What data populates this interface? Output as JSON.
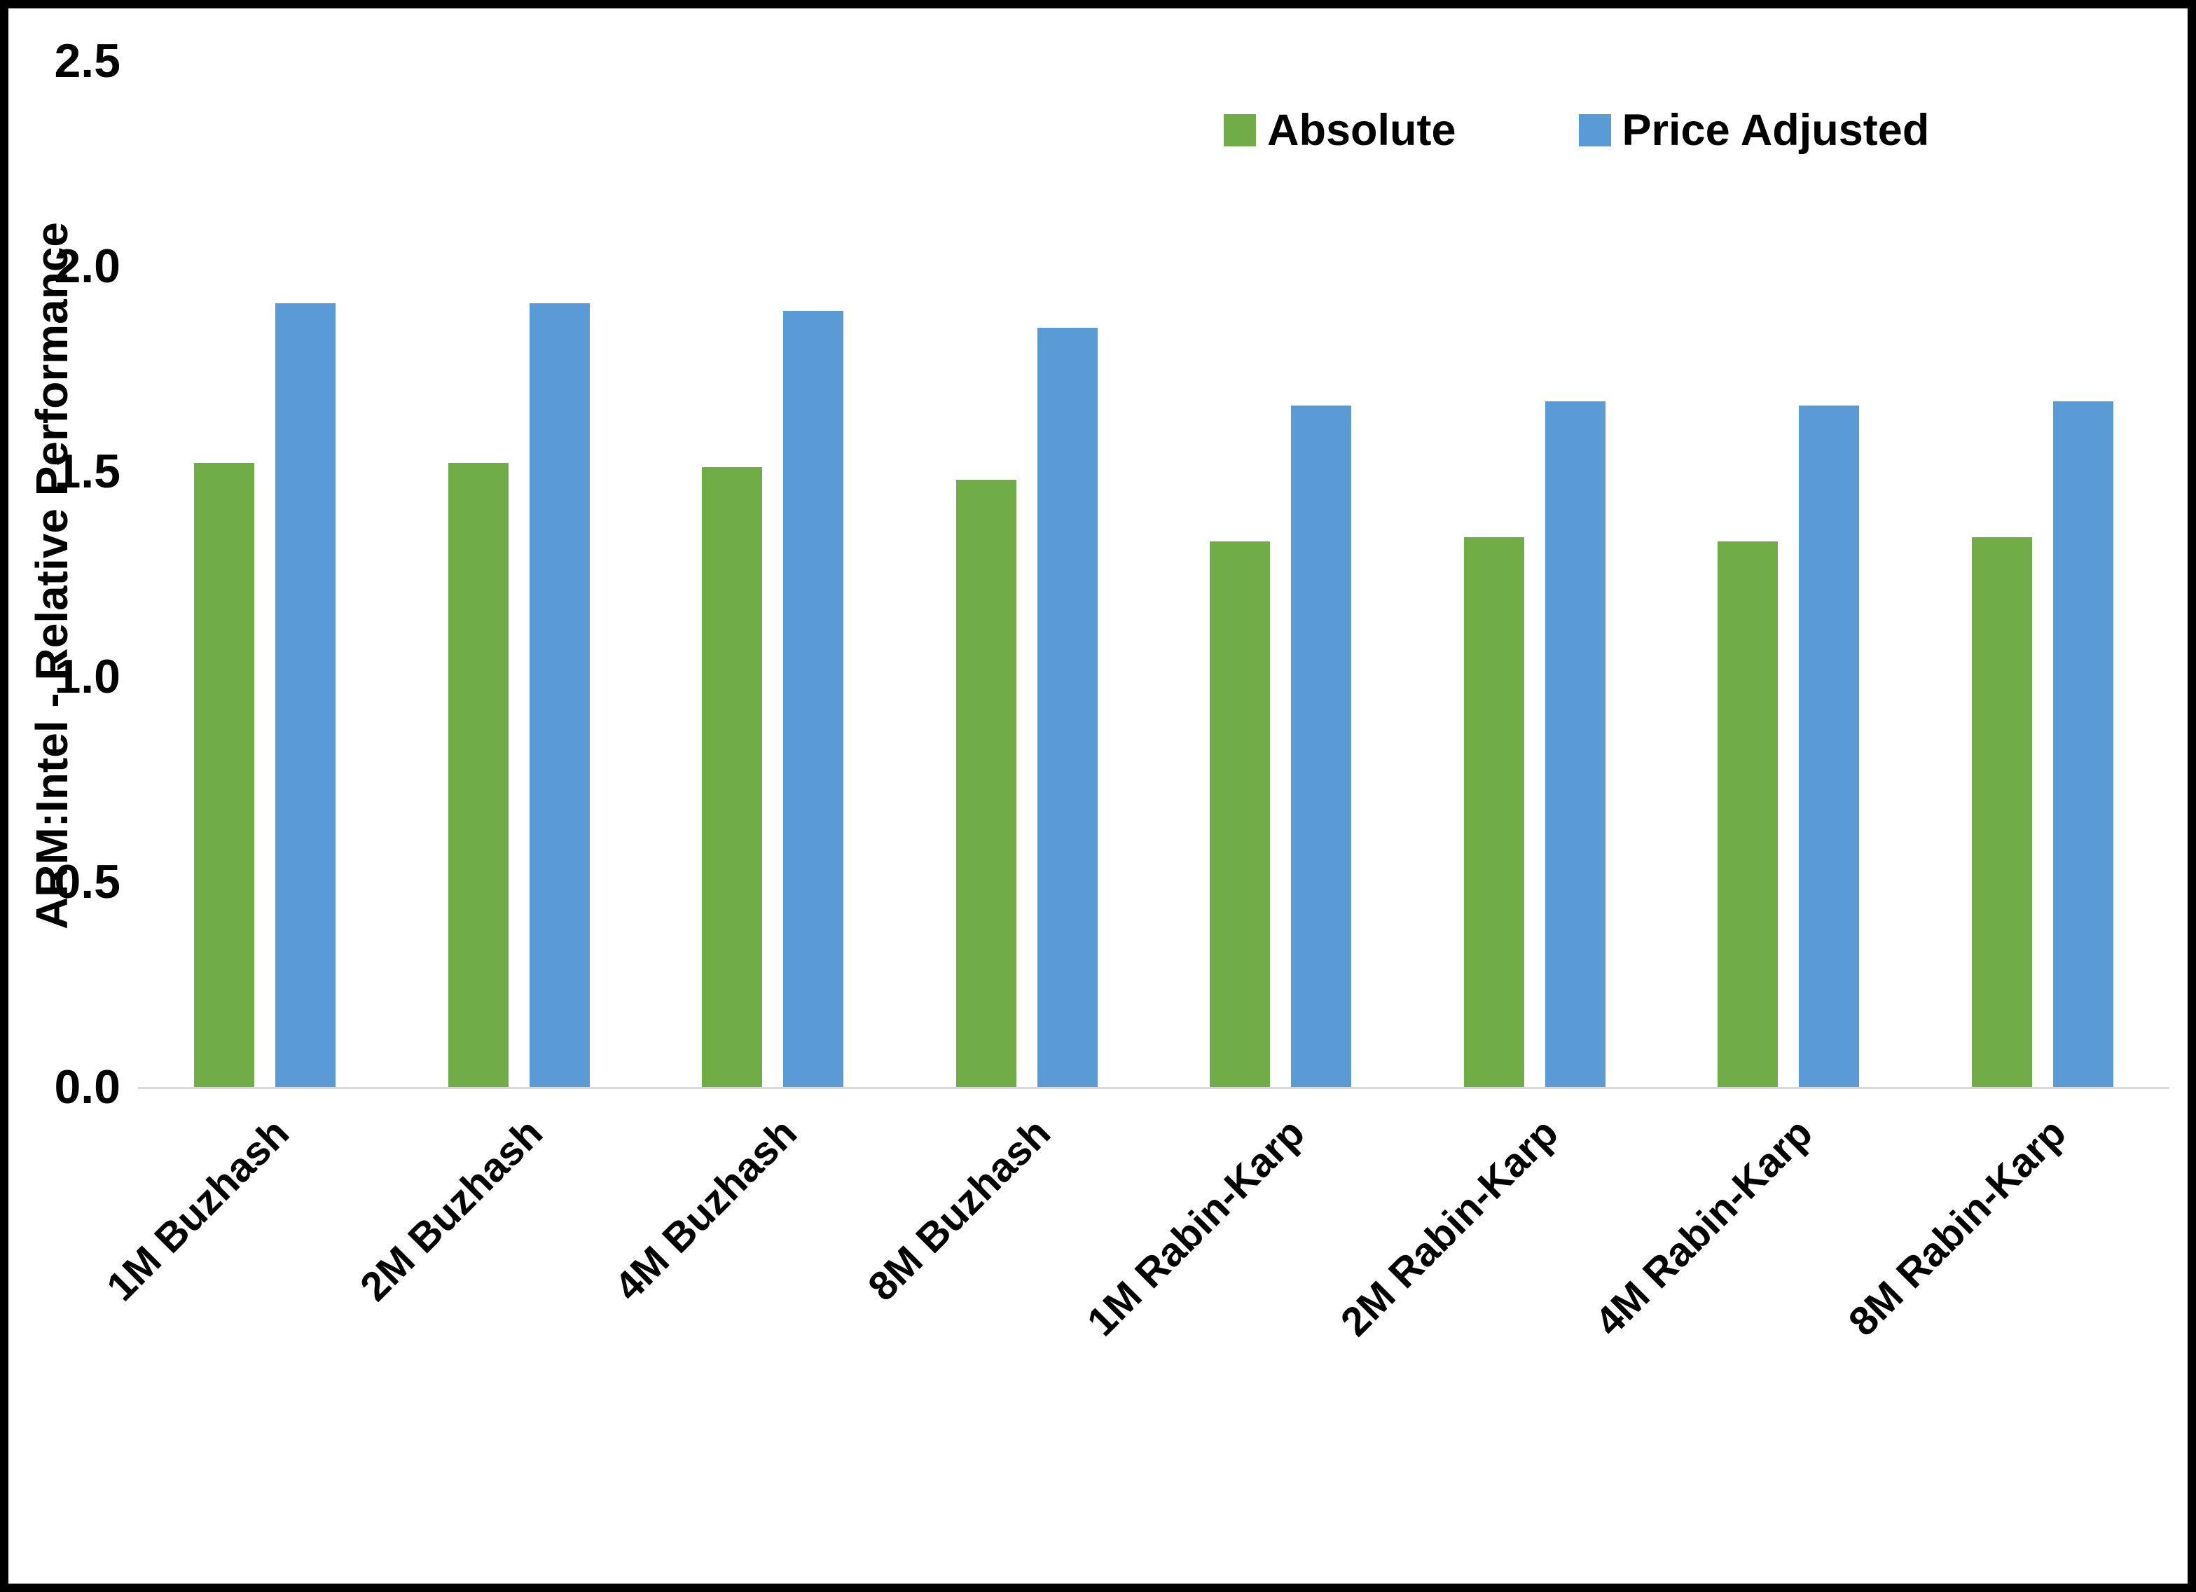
{
  "chart_data": {
    "type": "bar",
    "title": "",
    "xlabel": "",
    "ylabel": "ARM:Intel - Relative Performance",
    "ylim": [
      0,
      2.5
    ],
    "yticks": [
      0.0,
      0.5,
      1.0,
      1.5,
      2.0,
      2.5
    ],
    "ytick_labels": [
      "0.0",
      "0.5",
      "1.0",
      "1.5",
      "2.0",
      "2.5"
    ],
    "categories": [
      "1M Buzhash",
      "2M Buzhash",
      "4M Buzhash",
      "8M Buzhash",
      "1M Rabin-Karp",
      "2M Rabin-Karp",
      "4M Rabin-Karp",
      "8M Rabin-Karp"
    ],
    "series": [
      {
        "name": "Absolute",
        "color": "#70AD47",
        "values": [
          1.52,
          1.52,
          1.51,
          1.48,
          1.33,
          1.34,
          1.33,
          1.34
        ]
      },
      {
        "name": "Price Adjusted",
        "color": "#5B9BD5",
        "values": [
          1.91,
          1.91,
          1.89,
          1.85,
          1.66,
          1.67,
          1.66,
          1.67
        ]
      }
    ],
    "legend_position": "top-right",
    "grid": false
  },
  "colors": {
    "absolute": "#70AD47",
    "price_adjusted": "#5B9BD5",
    "axis_line": "#D9D9D9",
    "text": "#000000",
    "border": "#000000",
    "background": "#FFFFFF"
  }
}
